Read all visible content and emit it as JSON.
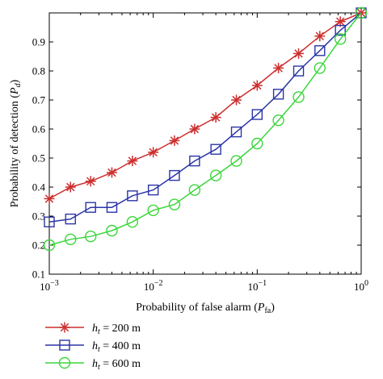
{
  "chart_data": {
    "type": "line",
    "title": "",
    "xlabel": {
      "main": "Probability of false alarm (",
      "var": "P",
      "sub": "fa",
      "close": ")"
    },
    "ylabel": {
      "main": "Probability of detection (",
      "var": "P",
      "sub": "d",
      "close": ")"
    },
    "xscale": "log",
    "xlim": [
      0.001,
      1
    ],
    "ylim": [
      0.1,
      1.0
    ],
    "x_ticks": [
      {
        "value": 0.001,
        "base": "10",
        "exp": "−3"
      },
      {
        "value": 0.01,
        "base": "10",
        "exp": "−2"
      },
      {
        "value": 0.1,
        "base": "10",
        "exp": "−1"
      },
      {
        "value": 1,
        "base": "10",
        "exp": "0"
      }
    ],
    "y_ticks": [
      {
        "value": 0.1,
        "label": "0.1"
      },
      {
        "value": 0.2,
        "label": "0.2"
      },
      {
        "value": 0.3,
        "label": "0.3"
      },
      {
        "value": 0.4,
        "label": "0.4"
      },
      {
        "value": 0.5,
        "label": "0.5"
      },
      {
        "value": 0.6,
        "label": "0.6"
      },
      {
        "value": 0.7,
        "label": "0.7"
      },
      {
        "value": 0.8,
        "label": "0.8"
      },
      {
        "value": 0.9,
        "label": "0.9"
      }
    ],
    "grid": false,
    "legend_position": "below-left",
    "series": [
      {
        "var": "h",
        "sub": "t",
        "rest": " = 200 m",
        "color": "#cc2f2f",
        "marker": "asterisk",
        "points": [
          [
            0.001,
            0.36
          ],
          [
            0.0016,
            0.4
          ],
          [
            0.0025,
            0.42
          ],
          [
            0.004,
            0.45
          ],
          [
            0.0063,
            0.49
          ],
          [
            0.01,
            0.52
          ],
          [
            0.016,
            0.56
          ],
          [
            0.025,
            0.6
          ],
          [
            0.04,
            0.64
          ],
          [
            0.063,
            0.7
          ],
          [
            0.1,
            0.75
          ],
          [
            0.16,
            0.81
          ],
          [
            0.25,
            0.86
          ],
          [
            0.4,
            0.92
          ],
          [
            0.63,
            0.97
          ],
          [
            1.0,
            1.0
          ]
        ]
      },
      {
        "var": "h",
        "sub": "t",
        "rest": " = 400 m",
        "color": "#2a35a6",
        "marker": "square",
        "points": [
          [
            0.001,
            0.28
          ],
          [
            0.0016,
            0.29
          ],
          [
            0.0025,
            0.33
          ],
          [
            0.004,
            0.33
          ],
          [
            0.0063,
            0.37
          ],
          [
            0.01,
            0.39
          ],
          [
            0.016,
            0.44
          ],
          [
            0.025,
            0.49
          ],
          [
            0.04,
            0.53
          ],
          [
            0.063,
            0.59
          ],
          [
            0.1,
            0.65
          ],
          [
            0.16,
            0.72
          ],
          [
            0.25,
            0.8
          ],
          [
            0.4,
            0.87
          ],
          [
            0.63,
            0.94
          ],
          [
            1.0,
            1.0
          ]
        ]
      },
      {
        "var": "h",
        "sub": "t",
        "rest": " = 600 m",
        "color": "#3ad63a",
        "marker": "circle",
        "points": [
          [
            0.001,
            0.2
          ],
          [
            0.0016,
            0.22
          ],
          [
            0.0025,
            0.23
          ],
          [
            0.004,
            0.25
          ],
          [
            0.0063,
            0.28
          ],
          [
            0.01,
            0.32
          ],
          [
            0.016,
            0.34
          ],
          [
            0.025,
            0.39
          ],
          [
            0.04,
            0.44
          ],
          [
            0.063,
            0.49
          ],
          [
            0.1,
            0.55
          ],
          [
            0.16,
            0.63
          ],
          [
            0.25,
            0.71
          ],
          [
            0.4,
            0.81
          ],
          [
            0.63,
            0.91
          ],
          [
            1.0,
            1.0
          ]
        ]
      }
    ]
  }
}
